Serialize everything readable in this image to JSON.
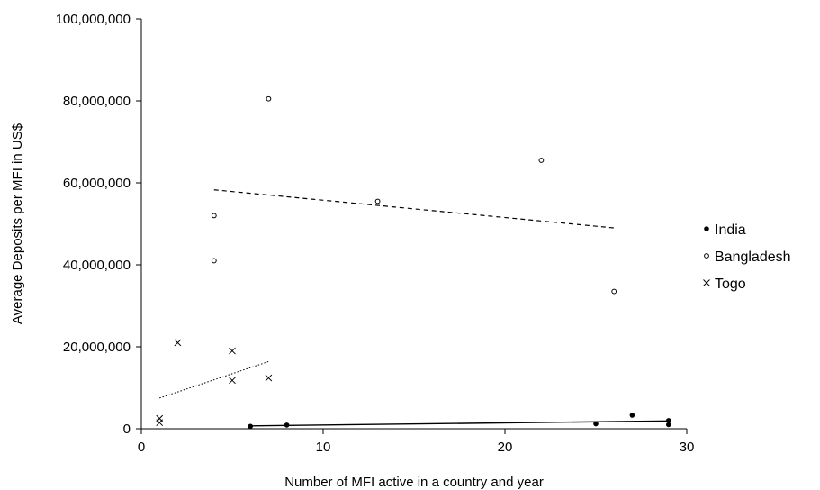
{
  "chart_data": {
    "type": "scatter",
    "title": "",
    "xlabel": "Number of MFI  active in a country and year",
    "ylabel": "Average Deposits per MFI in US$",
    "xlim": [
      0,
      30
    ],
    "ylim": [
      0,
      100000000
    ],
    "x_ticks": [
      0,
      10,
      20,
      30
    ],
    "x_tick_labels": [
      "0",
      "10",
      "20",
      "30"
    ],
    "y_ticks": [
      0,
      20000000,
      40000000,
      60000000,
      80000000,
      100000000
    ],
    "y_tick_labels": [
      "0",
      "20,000,000",
      "40,000,000",
      "60,000,000",
      "80,000,000",
      "100,000,000"
    ],
    "grid": false,
    "legend_position": "right",
    "series": [
      {
        "name": "India",
        "marker": "filled-circle",
        "points": [
          [
            6,
            600000
          ],
          [
            8,
            900000
          ],
          [
            25,
            1200000
          ],
          [
            27,
            3300000
          ],
          [
            29,
            2000000
          ],
          [
            29,
            1000000
          ]
        ],
        "trendline": {
          "style": "solid",
          "from": [
            6,
            700000
          ],
          "to": [
            29,
            1900000
          ]
        }
      },
      {
        "name": "Bangladesh",
        "marker": "open-circle",
        "points": [
          [
            4,
            52000000
          ],
          [
            4,
            41000000
          ],
          [
            7,
            80500000
          ],
          [
            13,
            55500000
          ],
          [
            22,
            65500000
          ],
          [
            26,
            33500000
          ]
        ],
        "trendline": {
          "style": "dashed",
          "from": [
            4,
            58300000
          ],
          "to": [
            26,
            49000000
          ]
        }
      },
      {
        "name": "Togo",
        "marker": "x",
        "points": [
          [
            1,
            2500000
          ],
          [
            1,
            1500000
          ],
          [
            2,
            21000000
          ],
          [
            5,
            19000000
          ],
          [
            5,
            11800000
          ],
          [
            7,
            12400000
          ]
        ],
        "trendline": {
          "style": "dotted",
          "from": [
            1,
            7500000
          ],
          "to": [
            7,
            16400000
          ]
        }
      }
    ]
  }
}
